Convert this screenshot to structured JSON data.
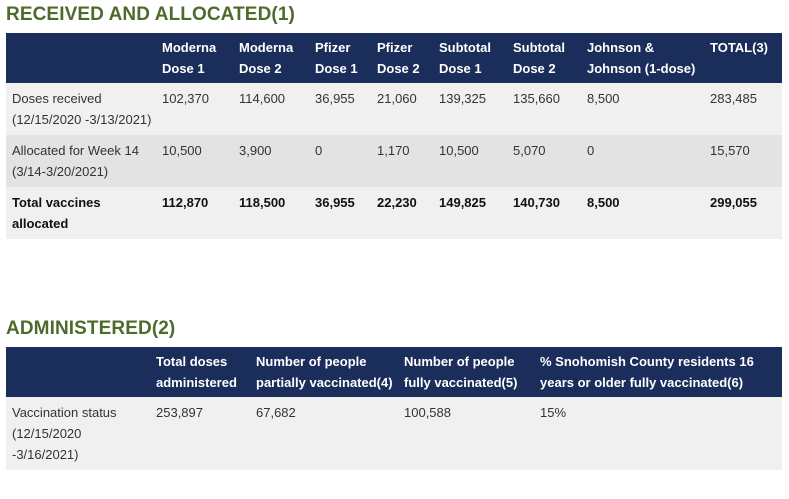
{
  "received": {
    "title": "RECEIVED AND ALLOCATED(1)",
    "headers": [
      "",
      "Moderna Dose 1",
      "Moderna Dose 2",
      "Pfizer Dose 1",
      "Pfizer Dose 2",
      "Subtotal Dose 1",
      "Subtotal Dose 2",
      "Johnson & Johnson (1-dose)",
      "TOTAL(3)"
    ],
    "rows": [
      [
        "Doses received (12/15/2020 -3/13/2021)",
        "102,370",
        "114,600",
        "36,955",
        "21,060",
        "139,325",
        "135,660",
        "8,500",
        "283,485"
      ],
      [
        "Allocated for Week 14 (3/14-3/20/2021)",
        "10,500",
        "3,900",
        "0",
        "1,170",
        "10,500",
        "5,070",
        "0",
        "15,570"
      ],
      [
        "Total vaccines allocated",
        "112,870",
        "118,500",
        "36,955",
        "22,230",
        "149,825",
        "140,730",
        "8,500",
        "299,055"
      ]
    ]
  },
  "administered": {
    "title": "ADMINISTERED(2)",
    "headers": [
      "",
      "Total doses administered",
      "Number of people partially vaccinated(4)",
      "Number of people fully vaccinated(5)",
      "% Snohomish County residents 16 years or older fully vaccinated(6)"
    ],
    "rows": [
      [
        "Vaccination status (12/15/2020 -3/16/2021)",
        "253,897",
        "67,682",
        "100,588",
        "15%"
      ]
    ]
  },
  "colors": {
    "heading": "#4e6b2c",
    "table_header_bg": "#1b2d5b",
    "row_light": "#f0f0f0",
    "row_dark": "#e3e3e3"
  }
}
